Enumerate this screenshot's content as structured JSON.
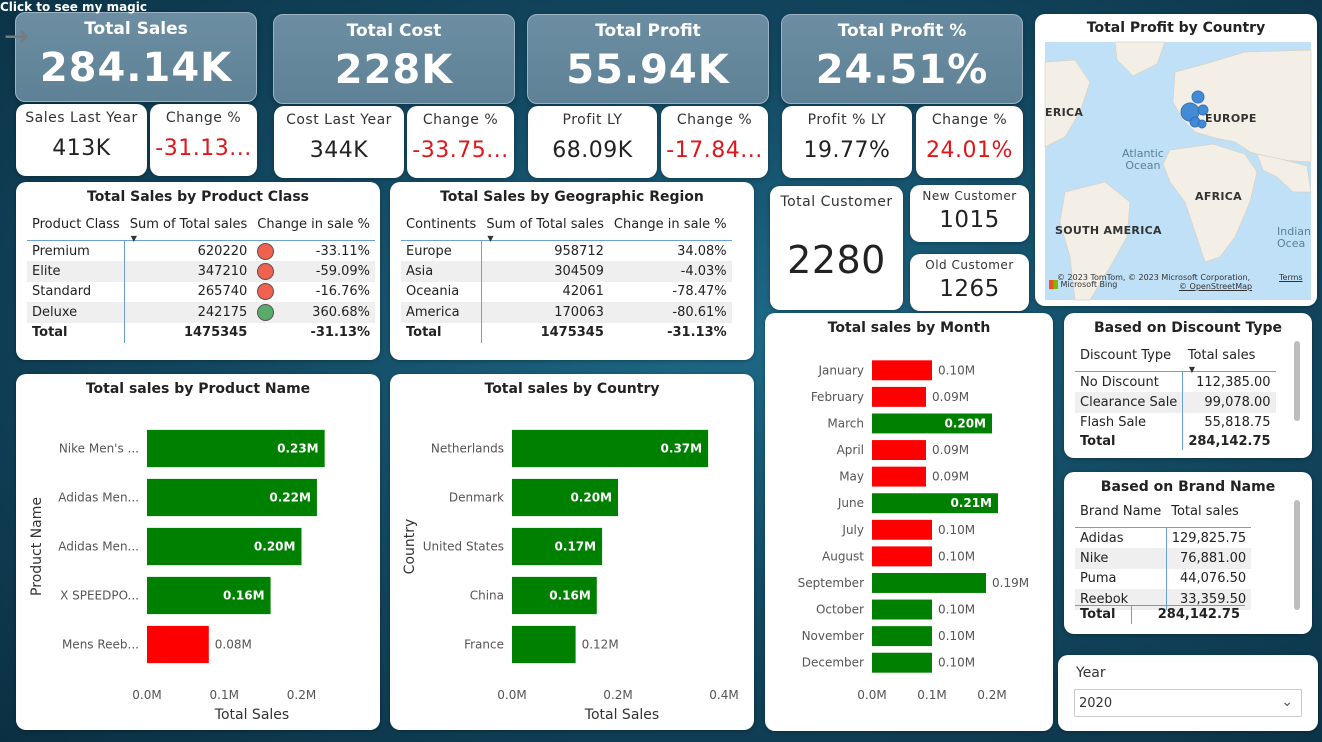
{
  "header": {
    "magic_link": "Click to see my magic"
  },
  "kpis": [
    {
      "title": "Total Sales",
      "value": "284.14K"
    },
    {
      "title": "Total Cost",
      "value": "228K"
    },
    {
      "title": "Total Profit",
      "value": "55.94K"
    },
    {
      "title": "Total Profit %",
      "value": "24.51%"
    }
  ],
  "sub_kpis": [
    {
      "title": "Sales Last Year",
      "value": "413K",
      "red": false
    },
    {
      "title": "Change %",
      "value": "-31.13...",
      "red": true
    },
    {
      "title": "Cost Last Year",
      "value": "344K",
      "red": false
    },
    {
      "title": "Change %",
      "value": "-33.75...",
      "red": true
    },
    {
      "title": "Profit LY",
      "value": "68.09K",
      "red": false
    },
    {
      "title": "Change %",
      "value": "-17.84...",
      "red": true
    },
    {
      "title": "Profit % LY",
      "value": "19.77%",
      "red": false
    },
    {
      "title": "Change %",
      "value": "24.01%",
      "red": true
    }
  ],
  "product_class": {
    "title": "Total Sales by Product Class",
    "headers": [
      "Product Class",
      "Sum of Total sales",
      "Change in sale %"
    ],
    "rows": [
      {
        "name": "Premium",
        "value": "620220",
        "dot": "#f0614f",
        "change": "-33.11%"
      },
      {
        "name": "Elite",
        "value": "347210",
        "dot": "#f0614f",
        "change": "-59.09%"
      },
      {
        "name": "Standard",
        "value": "265740",
        "dot": "#f0614f",
        "change": "-16.76%"
      },
      {
        "name": "Deluxe",
        "value": "242175",
        "dot": "#5aab6a",
        "change": "360.68%"
      }
    ],
    "total": {
      "name": "Total",
      "value": "1475345",
      "change": "-31.13%"
    }
  },
  "geo_region": {
    "title": "Total Sales by Geographic Region",
    "headers": [
      "Continents",
      "Sum of Total sales",
      "Change in sale %"
    ],
    "rows": [
      {
        "name": "Europe",
        "value": "958712",
        "change": "34.08%"
      },
      {
        "name": "Asia",
        "value": "304509",
        "change": "-4.03%"
      },
      {
        "name": "Oceania",
        "value": "42061",
        "change": "-78.47%"
      },
      {
        "name": "America",
        "value": "170063",
        "change": "-80.61%"
      }
    ],
    "total": {
      "name": "Total",
      "value": "1475345",
      "change": "-31.13%"
    }
  },
  "customers": {
    "total_title": "Total Customer",
    "total_value": "2280",
    "new_title": "New Customer",
    "new_value": "1015",
    "old_title": "Old Customer",
    "old_value": "1265"
  },
  "map": {
    "title": "Total Profit by Country",
    "labels": [
      "ERICA",
      "EUROPE",
      "AFRICA",
      "SOUTH AMERICA"
    ],
    "oceans": [
      "Atlantic\nOcean",
      "Indian\nOcea"
    ],
    "attribution": "© 2023 TomTom, © 2023 Microsoft Corporation,",
    "terms": "Terms",
    "osm": "© OpenStreetMap",
    "bing": "Microsoft Bing"
  },
  "discount": {
    "title": "Based on Discount Type",
    "headers": [
      "Discount Type",
      "Total sales"
    ],
    "rows": [
      {
        "name": "No Discount",
        "value": "112,385.00"
      },
      {
        "name": "Clearance Sale",
        "value": "99,078.00"
      },
      {
        "name": "Flash Sale",
        "value": "55,818.75"
      }
    ],
    "total": {
      "name": "Total",
      "value": "284,142.75"
    }
  },
  "brand": {
    "title": "Based on Brand Name",
    "headers": [
      "Brand Name",
      "Total sales"
    ],
    "rows": [
      {
        "name": "Adidas",
        "value": "129,825.75"
      },
      {
        "name": "Nike",
        "value": "76,881.00"
      },
      {
        "name": "Puma",
        "value": "44,076.50"
      },
      {
        "name": "Reebok",
        "value": "33,359.50"
      }
    ],
    "total": {
      "name": "Total",
      "value": "284,142.75"
    }
  },
  "slicer": {
    "title": "Year",
    "value": "2020"
  },
  "colors": {
    "green": "#008000",
    "red": "#ff0000"
  },
  "chart_data": [
    {
      "id": "product",
      "type": "bar",
      "orientation": "horizontal",
      "title": "Total sales by Product Name",
      "xlabel": "Total Sales",
      "ylabel": "Product Name",
      "categories": [
        "Nike Men's ...",
        "Adidas Men...",
        "Adidas Men...",
        "X SPEEDPO...",
        "Mens Reeb..."
      ],
      "values": [
        0.23,
        0.22,
        0.2,
        0.16,
        0.08
      ],
      "labels": [
        "0.23M",
        "0.22M",
        "0.20M",
        "0.16M",
        "0.08M"
      ],
      "colors": [
        "#008000",
        "#008000",
        "#008000",
        "#008000",
        "#ff0000"
      ],
      "xlim": [
        0,
        0.29
      ],
      "xticks": [
        0,
        0.1,
        0.2
      ],
      "xtick_labels": [
        "0.0M",
        "0.1M",
        "0.2M"
      ]
    },
    {
      "id": "country",
      "type": "bar",
      "orientation": "horizontal",
      "title": "Total sales by Country",
      "xlabel": "Total Sales",
      "ylabel": "Country",
      "categories": [
        "Netherlands",
        "Denmark",
        "United States",
        "China",
        "France"
      ],
      "values": [
        0.37,
        0.2,
        0.17,
        0.16,
        0.12
      ],
      "labels": [
        "0.37M",
        "0.20M",
        "0.17M",
        "0.16M",
        "0.12M"
      ],
      "colors": [
        "#008000",
        "#008000",
        "#008000",
        "#008000",
        "#008000"
      ],
      "xlim": [
        0,
        0.4
      ],
      "xticks": [
        0,
        0.2,
        0.4
      ],
      "xtick_labels": [
        "0.0M",
        "0.2M",
        "0.4M"
      ]
    },
    {
      "id": "month",
      "type": "bar",
      "orientation": "horizontal",
      "title": "Total sales by Month",
      "xlabel": "",
      "ylabel": "",
      "categories": [
        "January",
        "February",
        "March",
        "April",
        "May",
        "June",
        "July",
        "August",
        "September",
        "October",
        "November",
        "December"
      ],
      "values": [
        0.1,
        0.09,
        0.2,
        0.09,
        0.09,
        0.21,
        0.1,
        0.1,
        0.19,
        0.1,
        0.1,
        0.1
      ],
      "labels": [
        "0.10M",
        "0.09M",
        "0.20M",
        "0.09M",
        "0.09M",
        "0.21M",
        "0.10M",
        "0.10M",
        "0.19M",
        "0.10M",
        "0.10M",
        "0.10M"
      ],
      "colors": [
        "#ff0000",
        "#ff0000",
        "#008000",
        "#ff0000",
        "#ff0000",
        "#008000",
        "#ff0000",
        "#ff0000",
        "#008000",
        "#008000",
        "#008000",
        "#008000"
      ],
      "xlim": [
        0,
        0.2
      ],
      "xticks": [
        0,
        0.1,
        0.2
      ],
      "xtick_labels": [
        "0.0M",
        "0.1M",
        "0.2M"
      ]
    }
  ]
}
